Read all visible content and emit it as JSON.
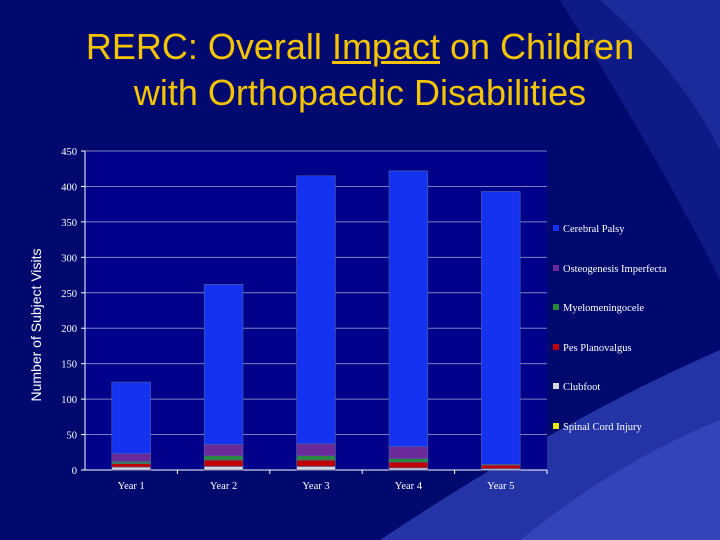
{
  "slide": {
    "title_line1_pre": "RERC:  Overall ",
    "title_line1_underlined": "Impact",
    "title_line1_post": " on Children",
    "title_line2": "with Orthopaedic Disabilities"
  },
  "colors": {
    "background": "#000a6e",
    "title": "#f5c400",
    "plot_background": "#00008a",
    "gridline": "#7f7fbf"
  },
  "chart_data": {
    "type": "bar",
    "stacked": true,
    "title": "",
    "xlabel": "",
    "ylabel": "Number of Subject Visits",
    "ylim": [
      0,
      450
    ],
    "yticks": [
      0,
      50,
      100,
      150,
      200,
      250,
      300,
      350,
      400,
      450
    ],
    "grid": true,
    "legend_position": "right",
    "categories": [
      "Year 1",
      "Year 2",
      "Year 3",
      "Year 4",
      "Year 5"
    ],
    "series": [
      {
        "name": "Spinal Cord Injury",
        "color": "#e8e800",
        "values": [
          0,
          0,
          0,
          0,
          0
        ]
      },
      {
        "name": "Clubfoot",
        "color": "#d8d8d8",
        "values": [
          4,
          5,
          5,
          3,
          2
        ]
      },
      {
        "name": "Pes Planovalgus",
        "color": "#c00000",
        "values": [
          5,
          9,
          9,
          8,
          5
        ]
      },
      {
        "name": "Myelomeningocele",
        "color": "#2a8a3a",
        "values": [
          3,
          6,
          6,
          5,
          1
        ]
      },
      {
        "name": "Osteogenesis Imperfecta",
        "color": "#6a2a9a",
        "values": [
          11,
          16,
          17,
          17,
          0
        ]
      },
      {
        "name": "Cerebral Palsy",
        "color": "#1432f0",
        "values": [
          101,
          226,
          378,
          389,
          385
        ]
      }
    ]
  }
}
